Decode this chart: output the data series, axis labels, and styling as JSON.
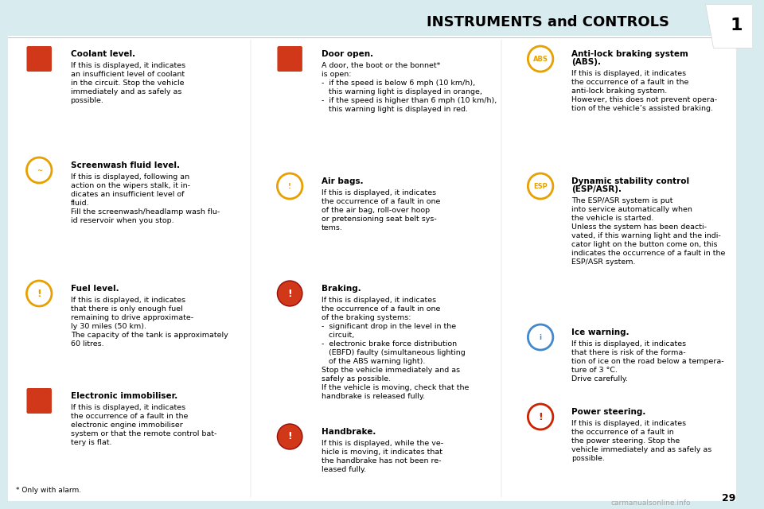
{
  "title": "INSTRUMENTS and CONTROLS",
  "page_number": "1",
  "bg_color": "#d8ecf0",
  "white_bg": "#ffffff",
  "header_bg": "#d8ecf0",
  "text_color": "#000000",
  "sections": [
    {
      "col": 0,
      "icon_color": "#cc2200",
      "title": "Coolant level.",
      "body": "If this is displayed, it indicates\nan insufficient level of coolant\nin the circuit. Stop the vehicle\nimmediately and as safely as\npossible."
    },
    {
      "col": 0,
      "icon_color": "#e8a000",
      "title": "Screenwash fluid level.",
      "body": "If this is displayed, following an\naction on the wipers stalk, it in-\ndicates an insufficient level of\nfluid.\nFill the screenwash/headlamp wash flu-\nid reservoir when you stop."
    },
    {
      "col": 0,
      "icon_color": "#e8a000",
      "title": "Fuel level.",
      "body": "If this is displayed, it indicates\nthat there is only enough fuel\nremaining to drive approximate-\nly 30 miles (50 km).\nThe capacity of the tank is approximately\n60 litres."
    },
    {
      "col": 0,
      "icon_color": "#cc2200",
      "title": "Electronic immobiliser.",
      "body": "If this is displayed, it indicates\nthe occurrence of a fault in the\nelectronic engine immobiliser\nsystem or that the remote control bat-\ntery is flat."
    },
    {
      "col": 1,
      "icon_color": "#cc2200",
      "title": "Door open.",
      "body": "A door, the boot or the bonnet*\nis open:\n-  if the speed is below 6 mph (10 km/h),\n   this warning light is displayed in orange,\n-  if the speed is higher than 6 mph (10 km/h),\n   this warning light is displayed in red."
    },
    {
      "col": 1,
      "icon_color": "#e8a000",
      "title": "Air bags.",
      "body": "If this is displayed, it indicates\nthe occurrence of a fault in one\nof the air bag, roll-over hoop\nor pretensioning seat belt sys-\ntems."
    },
    {
      "col": 1,
      "icon_color": "#cc2200",
      "title": "Braking.",
      "body": "If this is displayed, it indicates\nthe occurrence of a fault in one\nof the braking systems:\n-  significant drop in the level in the\n   circuit,\n-  electronic brake force distribution\n   (EBFD) faulty (simultaneous lighting\n   of the ABS warning light).\nStop the vehicle immediately and as\nsafely as possible.\nIf the vehicle is moving, check that the\nhandbrake is released fully."
    },
    {
      "col": 1,
      "icon_color": "#cc2200",
      "title": "Handbrake.",
      "body": "If this is displayed, while the ve-\nhicle is moving, it indicates that\nthe handbrake has not been re-\nleased fully."
    },
    {
      "col": 2,
      "icon_color": "#e8a000",
      "title": "Anti-lock braking system\n(ABS).",
      "body": "If this is displayed, it indicates\nthe occurrence of a fault in the\nanti-lock braking system.\nHowever, this does not prevent opera-\ntion of the vehicle’s assisted braking."
    },
    {
      "col": 2,
      "icon_color": "#e8a000",
      "title": "Dynamic stability control\n(ESP/ASR).",
      "body": "The ESP/ASR system is put\ninto service automatically when\nthe vehicle is started.\nUnless the system has been deacti-\nvated, if this warning light and the indi-\ncator light on the button come on, this\nindicates the occurrence of a fault in the\nESP/ASR system."
    },
    {
      "col": 2,
      "icon_color": "#4488cc",
      "title": "Ice warning.",
      "body": "If this is displayed, it indicates\nthat there is risk of the forma-\ntion of ice on the road below a tempera-\nture of 3 °C.\nDrive carefully."
    },
    {
      "col": 2,
      "icon_color": "#cc2200",
      "title": "Power steering.",
      "body": "If this is displayed, it indicates\nthe occurrence of a fault in\nthe power steering. Stop the\nvehicle immediately and as safely as\npossible."
    }
  ],
  "footnote": "* Only with alarm.",
  "carmanuals_text": "carmanualsonline.info",
  "page_num_text": "29"
}
